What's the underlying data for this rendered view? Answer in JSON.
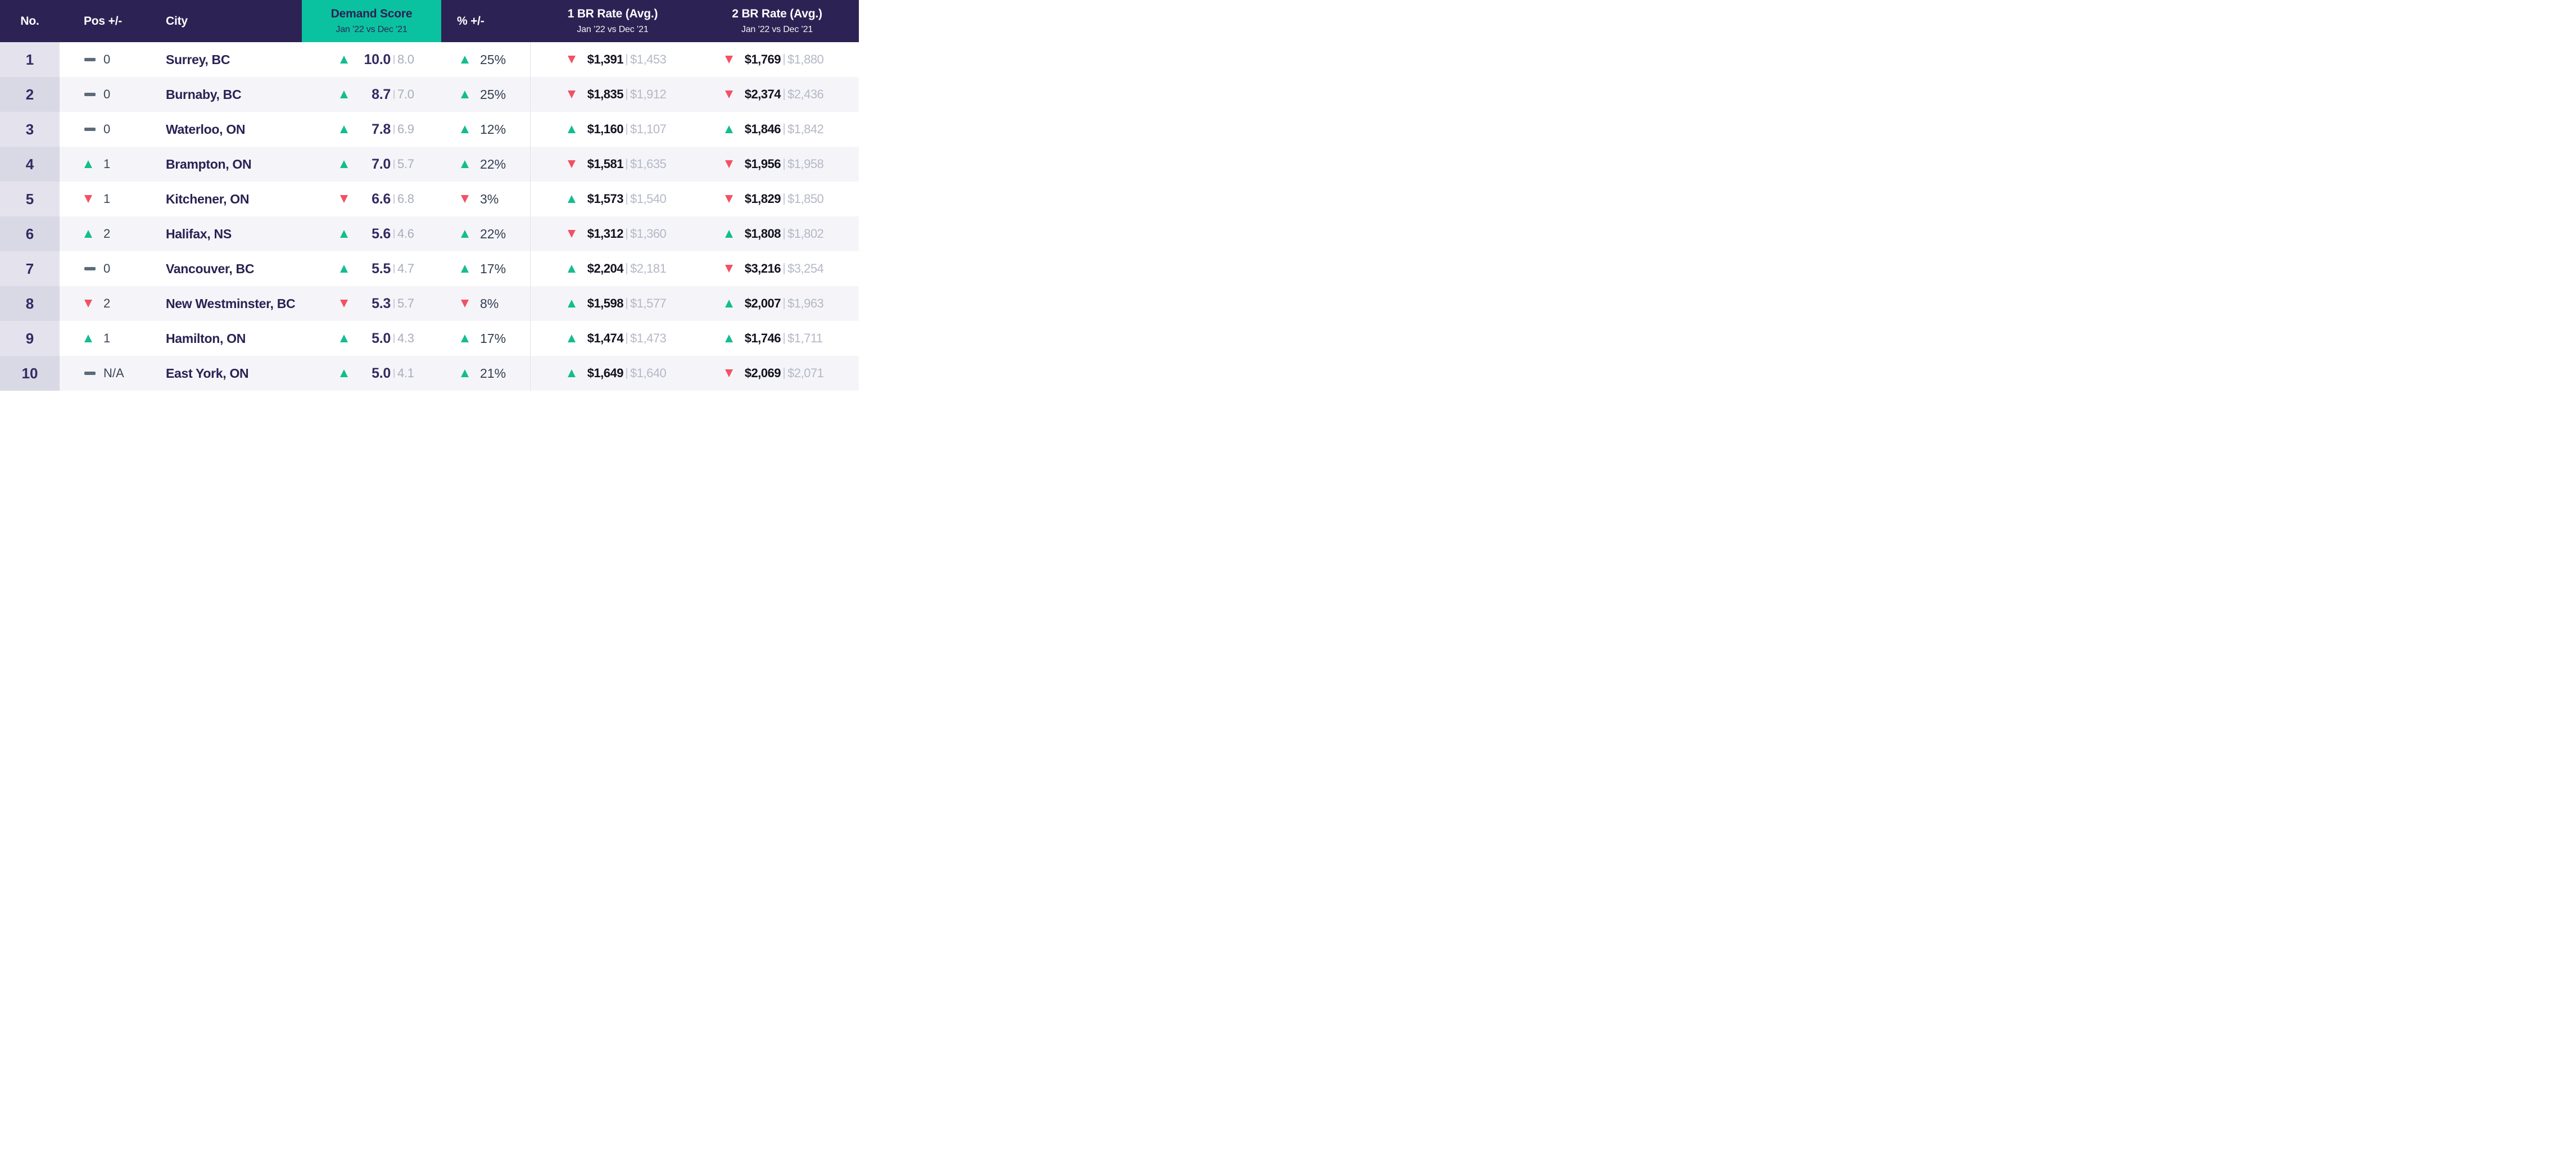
{
  "colors": {
    "header_bg": "#2d2254",
    "accent_teal": "#0bc2a0",
    "up_green": "#14bd8e",
    "down_red": "#f35064",
    "flat_dash_gray": "#5d6b78",
    "rank_city_purple": "#342a63",
    "previous_value_gray": "#b4b8c6",
    "row_alt_bg": "#f5f5f9",
    "no_col_bg_odd": "#e4e3ed",
    "no_col_bg_even": "#d9d8e5"
  },
  "table": {
    "header": {
      "no": "No.",
      "pos": "Pos +/-",
      "city": "City",
      "demand": {
        "title": "Demand Score",
        "subtitle": "Jan ’22 vs Dec ’21"
      },
      "pct": "% +/-",
      "br1": {
        "title": "1 BR Rate (Avg.)",
        "subtitle": "Jan ’22 vs Dec ’21"
      },
      "br2": {
        "title": "2 BR Rate (Avg.)",
        "subtitle": "Jan ’22 vs Dec ’21"
      }
    },
    "rows": [
      {
        "no": "1",
        "pos": {
          "dir": "flat",
          "value": "0"
        },
        "city": "Surrey, BC",
        "demand": {
          "dir": "up",
          "current": "10.0",
          "previous": "8.0"
        },
        "pct": {
          "dir": "up",
          "value": "25%"
        },
        "br1": {
          "dir": "down",
          "current": "$1,391",
          "previous": "$1,453"
        },
        "br2": {
          "dir": "down",
          "current": "$1,769",
          "previous": "$1,880"
        }
      },
      {
        "no": "2",
        "pos": {
          "dir": "flat",
          "value": "0"
        },
        "city": "Burnaby, BC",
        "demand": {
          "dir": "up",
          "current": "8.7",
          "previous": "7.0"
        },
        "pct": {
          "dir": "up",
          "value": "25%"
        },
        "br1": {
          "dir": "down",
          "current": "$1,835",
          "previous": "$1,912"
        },
        "br2": {
          "dir": "down",
          "current": "$2,374",
          "previous": "$2,436"
        }
      },
      {
        "no": "3",
        "pos": {
          "dir": "flat",
          "value": "0"
        },
        "city": "Waterloo, ON",
        "demand": {
          "dir": "up",
          "current": "7.8",
          "previous": "6.9"
        },
        "pct": {
          "dir": "up",
          "value": "12%"
        },
        "br1": {
          "dir": "up",
          "current": "$1,160",
          "previous": "$1,107"
        },
        "br2": {
          "dir": "up",
          "current": "$1,846",
          "previous": "$1,842"
        }
      },
      {
        "no": "4",
        "pos": {
          "dir": "up",
          "value": "1"
        },
        "city": "Brampton, ON",
        "demand": {
          "dir": "up",
          "current": "7.0",
          "previous": "5.7"
        },
        "pct": {
          "dir": "up",
          "value": "22%"
        },
        "br1": {
          "dir": "down",
          "current": "$1,581",
          "previous": "$1,635"
        },
        "br2": {
          "dir": "down",
          "current": "$1,956",
          "previous": "$1,958"
        }
      },
      {
        "no": "5",
        "pos": {
          "dir": "down",
          "value": "1"
        },
        "city": "Kitchener, ON",
        "demand": {
          "dir": "down",
          "current": "6.6",
          "previous": "6.8"
        },
        "pct": {
          "dir": "down",
          "value": "3%"
        },
        "br1": {
          "dir": "up",
          "current": "$1,573",
          "previous": "$1,540"
        },
        "br2": {
          "dir": "down",
          "current": "$1,829",
          "previous": "$1,850"
        }
      },
      {
        "no": "6",
        "pos": {
          "dir": "up",
          "value": "2"
        },
        "city": "Halifax, NS",
        "demand": {
          "dir": "up",
          "current": "5.6",
          "previous": "4.6"
        },
        "pct": {
          "dir": "up",
          "value": "22%"
        },
        "br1": {
          "dir": "down",
          "current": "$1,312",
          "previous": "$1,360"
        },
        "br2": {
          "dir": "up",
          "current": "$1,808",
          "previous": "$1,802"
        }
      },
      {
        "no": "7",
        "pos": {
          "dir": "flat",
          "value": "0"
        },
        "city": "Vancouver, BC",
        "demand": {
          "dir": "up",
          "current": "5.5",
          "previous": "4.7"
        },
        "pct": {
          "dir": "up",
          "value": "17%"
        },
        "br1": {
          "dir": "up",
          "current": "$2,204",
          "previous": "$2,181"
        },
        "br2": {
          "dir": "down",
          "current": "$3,216",
          "previous": "$3,254"
        }
      },
      {
        "no": "8",
        "pos": {
          "dir": "down",
          "value": "2"
        },
        "city": "New Westminster, BC",
        "demand": {
          "dir": "down",
          "current": "5.3",
          "previous": "5.7"
        },
        "pct": {
          "dir": "down",
          "value": "8%"
        },
        "br1": {
          "dir": "up",
          "current": "$1,598",
          "previous": "$1,577"
        },
        "br2": {
          "dir": "up",
          "current": "$2,007",
          "previous": "$1,963"
        }
      },
      {
        "no": "9",
        "pos": {
          "dir": "up",
          "value": "1"
        },
        "city": "Hamilton, ON",
        "demand": {
          "dir": "up",
          "current": "5.0",
          "previous": "4.3"
        },
        "pct": {
          "dir": "up",
          "value": "17%"
        },
        "br1": {
          "dir": "up",
          "current": "$1,474",
          "previous": "$1,473"
        },
        "br2": {
          "dir": "up",
          "current": "$1,746",
          "previous": "$1,711"
        }
      },
      {
        "no": "10",
        "pos": {
          "dir": "flat",
          "value": "N/A"
        },
        "city": "East York, ON",
        "demand": {
          "dir": "up",
          "current": "5.0",
          "previous": "4.1"
        },
        "pct": {
          "dir": "up",
          "value": "21%"
        },
        "br1": {
          "dir": "up",
          "current": "$1,649",
          "previous": "$1,640"
        },
        "br2": {
          "dir": "down",
          "current": "$2,069",
          "previous": "$2,071"
        }
      }
    ]
  },
  "chart_data": {
    "type": "table",
    "title": "Demand Score Jan ’22 vs Dec ’21",
    "columns": [
      "no",
      "pos_direction",
      "pos_change",
      "city",
      "demand_direction",
      "demand_jan22",
      "demand_dec21",
      "pct_direction",
      "pct_change",
      "br1_direction",
      "br1_jan22_usd",
      "br1_dec21_usd",
      "br2_direction",
      "br2_jan22_usd",
      "br2_dec21_usd"
    ],
    "rows": [
      [
        1,
        "flat",
        0,
        "Surrey, BC",
        "up",
        10.0,
        8.0,
        "up",
        25,
        "down",
        1391,
        1453,
        "down",
        1769,
        1880
      ],
      [
        2,
        "flat",
        0,
        "Burnaby, BC",
        "up",
        8.7,
        7.0,
        "up",
        25,
        "down",
        1835,
        1912,
        "down",
        2374,
        2436
      ],
      [
        3,
        "flat",
        0,
        "Waterloo, ON",
        "up",
        7.8,
        6.9,
        "up",
        12,
        "up",
        1160,
        1107,
        "up",
        1846,
        1842
      ],
      [
        4,
        "up",
        1,
        "Brampton, ON",
        "up",
        7.0,
        5.7,
        "up",
        22,
        "down",
        1581,
        1635,
        "down",
        1956,
        1958
      ],
      [
        5,
        "down",
        1,
        "Kitchener, ON",
        "down",
        6.6,
        6.8,
        "down",
        3,
        "up",
        1573,
        1540,
        "down",
        1829,
        1850
      ],
      [
        6,
        "up",
        2,
        "Halifax, NS",
        "up",
        5.6,
        4.6,
        "up",
        22,
        "down",
        1312,
        1360,
        "up",
        1808,
        1802
      ],
      [
        7,
        "flat",
        0,
        "Vancouver, BC",
        "up",
        5.5,
        4.7,
        "up",
        17,
        "up",
        2204,
        2181,
        "down",
        3216,
        3254
      ],
      [
        8,
        "down",
        2,
        "New Westminster, BC",
        "down",
        5.3,
        5.7,
        "down",
        8,
        "up",
        1598,
        1577,
        "up",
        2007,
        1963
      ],
      [
        9,
        "up",
        1,
        "Hamilton, ON",
        "up",
        5.0,
        4.3,
        "up",
        17,
        "up",
        1474,
        1473,
        "up",
        1746,
        1711
      ],
      [
        10,
        "flat",
        "N/A",
        "East York, ON",
        "up",
        5.0,
        4.1,
        "up",
        21,
        "up",
        1649,
        1640,
        "down",
        2069,
        2071
      ]
    ]
  }
}
